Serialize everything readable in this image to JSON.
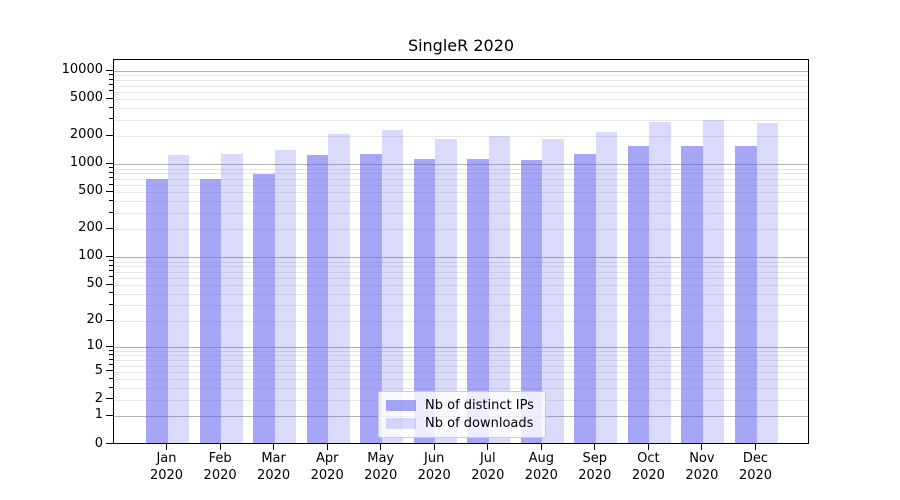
{
  "chart_data": {
    "type": "bar",
    "title": "SingleR 2020",
    "yscale": "log1p",
    "ylim": [
      0,
      13400
    ],
    "grid": {
      "major_color": "#b0b0b0",
      "minor_color": "#e6e6e6"
    },
    "legend_position": "lower-center",
    "categories": [
      "Jan",
      "Feb",
      "Mar",
      "Apr",
      "May",
      "Jun",
      "Jul",
      "Aug",
      "Sep",
      "Oct",
      "Nov",
      "Dec"
    ],
    "categories_year": "2020",
    "y_ticks": [
      0,
      1,
      2,
      5,
      10,
      20,
      50,
      100,
      200,
      500,
      1000,
      2000,
      5000,
      10000
    ],
    "series": [
      {
        "name": "Nb of distinct IPs",
        "color": "rgba(102,102,240,0.58)",
        "values": [
          705,
          705,
          780,
          1260,
          1290,
          1140,
          1140,
          1110,
          1290,
          1570,
          1560,
          1560
        ]
      },
      {
        "name": "Nb of downloads",
        "color": "rgba(102,102,240,0.24)",
        "values": [
          1260,
          1300,
          1420,
          2110,
          2330,
          1870,
          2010,
          1870,
          2220,
          2820,
          3000,
          2780
        ]
      }
    ]
  }
}
